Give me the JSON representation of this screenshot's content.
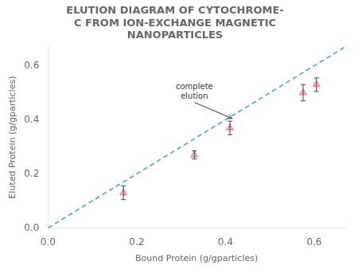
{
  "chart_data": {
    "type": "scatter",
    "title": [
      "ELUTION DIAGRAM OF CYTOCHROME-",
      "C FROM ION-EXCHANGE MAGNETIC",
      "NANOPARTICLES"
    ],
    "x_label": "Bound Protein (g/gparticles)",
    "y_label": "Eluted Protein (g/gparticles)",
    "xlim": [
      0,
      0.67
    ],
    "ylim": [
      0,
      0.67
    ],
    "xticks": [
      {
        "value": 0,
        "label": "0.0"
      },
      0.2,
      0.4,
      0.6
    ],
    "yticks": [
      {
        "value": 0,
        "label": "0.0"
      },
      0.2,
      0.4,
      0.6
    ],
    "grid": false,
    "series": [
      {
        "type": "line",
        "line_style": "dashed",
        "x": [
          0,
          0.67
        ],
        "values": [
          0,
          0.67
        ]
      },
      {
        "type": "scatter",
        "marker": "triangle",
        "x": [
          0.17,
          0.33,
          0.41,
          0.575,
          0.605
        ],
        "values": [
          0.13,
          0.27,
          0.37,
          0.5,
          0.53
        ],
        "yerr_lo": [
          0.025,
          0.015,
          0.025,
          0.03,
          0.025
        ],
        "yerr_hi": [
          0.025,
          0.015,
          0.025,
          0.03,
          0.025
        ]
      }
    ],
    "annotations": [
      {
        "text": "complete\nelution",
        "x": 0.33,
        "y": 0.47,
        "arrow_x": 0.415,
        "arrow_y": 0.405
      }
    ]
  }
}
